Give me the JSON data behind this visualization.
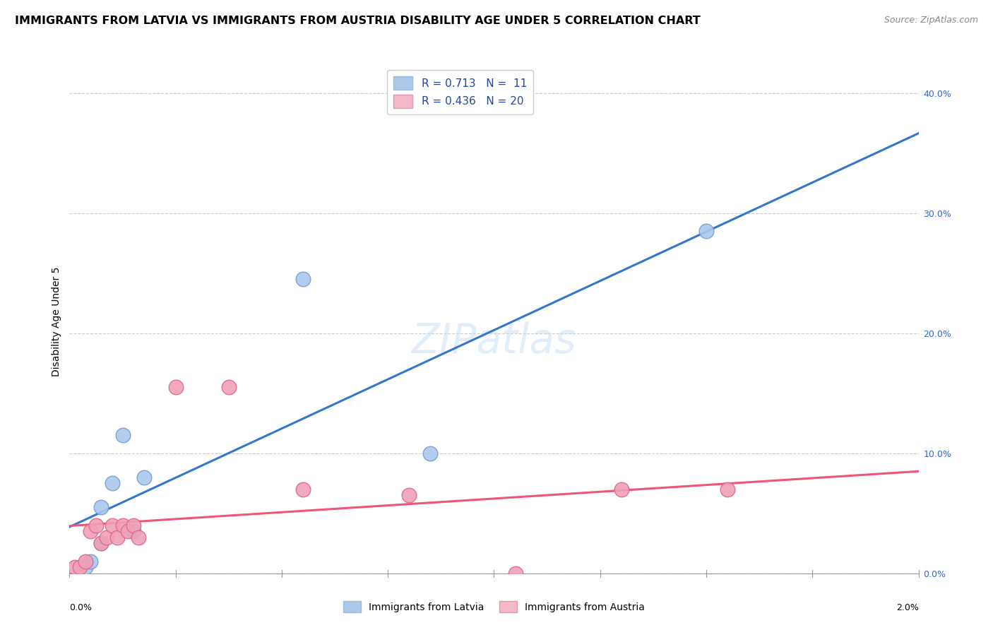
{
  "title": "IMMIGRANTS FROM LATVIA VS IMMIGRANTS FROM AUSTRIA DISABILITY AGE UNDER 5 CORRELATION CHART",
  "source": "Source: ZipAtlas.com",
  "ylabel": "Disability Age Under 5",
  "ylabel_right_ticks": [
    "0.0%",
    "10.0%",
    "20.0%",
    "30.0%",
    "40.0%"
  ],
  "ylabel_right_vals": [
    0.0,
    0.1,
    0.2,
    0.3,
    0.4
  ],
  "legend1_label": "R = 0.713   N =  11",
  "legend2_label": "R = 0.436   N = 20",
  "legend1_color": "#adc8e8",
  "legend2_color": "#f5b8c8",
  "watermark": "ZIPatlas",
  "latvia_x": [
    0.00015,
    0.0002,
    0.0003,
    0.0003,
    0.0004,
    0.0005,
    0.0006,
    0.0007,
    0.0022,
    0.0034,
    0.006
  ],
  "latvia_y": [
    0.005,
    0.01,
    0.025,
    0.055,
    0.075,
    0.115,
    0.035,
    0.08,
    0.245,
    0.1,
    0.285
  ],
  "austria_x": [
    5e-05,
    0.0001,
    0.00015,
    0.0002,
    0.00025,
    0.0003,
    0.00035,
    0.0004,
    0.00045,
    0.0005,
    0.00055,
    0.0006,
    0.00065,
    0.001,
    0.0015,
    0.0022,
    0.0032,
    0.0042,
    0.0052,
    0.0062
  ],
  "austria_y": [
    0.005,
    0.005,
    0.01,
    0.035,
    0.04,
    0.025,
    0.03,
    0.04,
    0.03,
    0.04,
    0.035,
    0.04,
    0.03,
    0.155,
    0.155,
    0.07,
    0.065,
    0.0,
    0.07,
    0.07
  ],
  "line_blue_color": "#3377cc",
  "line_pink_color": "#ee5577",
  "line_dashed_color": "#bbbbbb",
  "dot_blue_color": "#aac8ee",
  "dot_pink_color": "#f0a0b8",
  "dot_blue_edge": "#7799cc",
  "dot_pink_edge": "#dd6688",
  "xlim": [
    0.0,
    0.008
  ],
  "ylim": [
    0.0,
    0.42
  ],
  "title_fontsize": 11.5,
  "source_fontsize": 9,
  "axis_label_fontsize": 10,
  "tick_fontsize": 9,
  "legend_fontsize": 11
}
